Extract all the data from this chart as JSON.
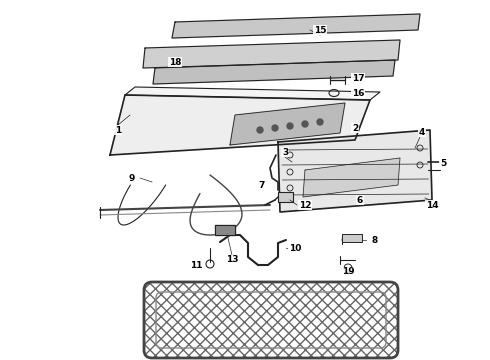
{
  "bg_color": "#ffffff",
  "line_color": "#222222",
  "label_color": "#000000",
  "label_fontsize": 6.5,
  "fig_width": 4.9,
  "fig_height": 3.6,
  "dpi": 100
}
